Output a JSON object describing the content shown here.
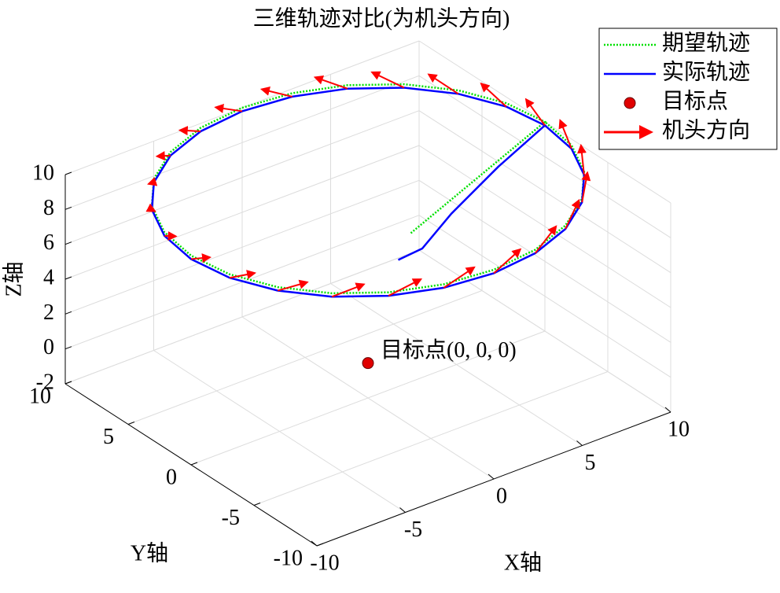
{
  "chart_data": {
    "type": "line3d",
    "title": "三维轨迹对比(为机头方向)",
    "xlabel": "X轴",
    "ylabel": "Y轴",
    "zlabel": "Z轴",
    "xlim": [
      -10,
      10
    ],
    "ylim": [
      -10,
      10
    ],
    "zlim": [
      -2,
      10
    ],
    "xticks": [
      -10,
      -5,
      0,
      5,
      10
    ],
    "yticks": [
      -10,
      -5,
      0,
      5,
      10
    ],
    "zticks": [
      -2,
      0,
      2,
      4,
      6,
      8,
      10
    ],
    "grid": true,
    "legend": "upper right",
    "annotation": {
      "text": "目标点(0, 0, 0)"
    },
    "series": [
      {
        "name": "期望轨迹",
        "color": "#00e000",
        "style": "dotted",
        "x": [
          1,
          10,
          9.66,
          8.66,
          7.07,
          5,
          2.59,
          0,
          -2.59,
          -5,
          -7.07,
          -8.66,
          -9.66,
          -10,
          -9.66,
          -8.66,
          -7.07,
          -5,
          -2.59,
          0,
          2.59,
          5,
          7.07,
          8.66,
          9.66,
          10
        ],
        "y": [
          -2,
          0,
          2.59,
          5,
          7.07,
          8.66,
          9.66,
          10,
          9.66,
          8.66,
          7.07,
          5,
          2.59,
          0,
          -2.59,
          -5,
          -7.07,
          -8.66,
          -9.66,
          -10,
          -9.66,
          -8.66,
          -7.07,
          -5,
          -2.59,
          0
        ],
        "z": [
          8,
          10,
          10,
          10,
          10,
          10,
          10,
          10,
          10,
          10,
          10,
          10,
          10,
          10,
          10,
          10,
          10,
          10,
          10,
          10,
          10,
          10,
          10,
          10,
          10,
          10
        ]
      },
      {
        "name": "实际轨迹",
        "color": "#0000ff",
        "style": "solid",
        "x": [
          1,
          2,
          4,
          7,
          10,
          9.66,
          8.66,
          7.07,
          5,
          2.59,
          0,
          -2.59,
          -5,
          -7.07,
          -8.66,
          -9.66,
          -10,
          -9.66,
          -8.66,
          -7.07,
          -5,
          -2.59,
          0,
          2.59,
          5,
          7.07,
          8.66,
          9.66,
          10
        ],
        "y": [
          -1,
          -1.5,
          -1,
          -0.5,
          0,
          2.59,
          5,
          7.07,
          8.66,
          9.66,
          10,
          9.66,
          8.66,
          7.07,
          5,
          2.59,
          0,
          -2.59,
          -5,
          -7.07,
          -8.66,
          -9.66,
          -10,
          -9.66,
          -8.66,
          -7.07,
          -5,
          -2.59,
          0
        ],
        "z": [
          6,
          6.5,
          7.5,
          8.8,
          9.8,
          9.8,
          9.8,
          9.8,
          9.8,
          9.8,
          9.8,
          9.8,
          9.8,
          9.8,
          9.8,
          9.8,
          9.8,
          9.8,
          9.8,
          9.8,
          9.8,
          9.8,
          9.8,
          9.8,
          9.8,
          9.8,
          9.8,
          9.8,
          9.8
        ]
      },
      {
        "name": "目标点",
        "color": "#e00000",
        "style": "marker",
        "x": [
          0
        ],
        "y": [
          0
        ],
        "z": [
          0
        ]
      },
      {
        "name": "机头方向",
        "color": "#ff0000",
        "style": "arrow",
        "x": [
          10,
          9.66,
          8.66,
          7.07,
          5,
          2.59,
          0,
          -2.59,
          -5,
          -7.07,
          -8.66,
          -9.66,
          -10,
          -9.66,
          -8.66,
          -7.07,
          -5,
          -2.59,
          0,
          2.59,
          5,
          7.07,
          8.66,
          9.66
        ],
        "y": [
          0,
          2.59,
          5,
          7.07,
          8.66,
          9.66,
          10,
          9.66,
          8.66,
          7.07,
          5,
          2.59,
          0,
          -2.59,
          -5,
          -7.07,
          -8.66,
          -9.66,
          -10,
          -9.66,
          -8.66,
          -7.07,
          -5,
          -2.59
        ],
        "z": [
          9.8,
          9.8,
          9.8,
          9.8,
          9.8,
          9.8,
          9.8,
          9.8,
          9.8,
          9.8,
          9.8,
          9.8,
          9.8,
          9.8,
          9.8,
          9.8,
          9.8,
          9.8,
          9.8,
          9.8,
          9.8,
          9.8,
          9.8,
          9.8
        ],
        "u": [
          0,
          -0.39,
          -0.75,
          -1.06,
          -1.3,
          -1.45,
          -1.5,
          -1.45,
          -1.3,
          -1.06,
          -0.75,
          -0.39,
          0,
          0.39,
          0.75,
          1.06,
          1.3,
          1.45,
          1.5,
          1.45,
          1.3,
          1.06,
          0.75,
          0.39
        ],
        "v": [
          1.5,
          1.45,
          1.3,
          1.06,
          0.75,
          0.39,
          0,
          -0.39,
          -0.75,
          -1.06,
          -1.3,
          -1.45,
          -1.5,
          -1.45,
          -1.3,
          -1.06,
          -0.75,
          -0.39,
          0,
          0.39,
          0.75,
          1.06,
          1.3,
          1.45
        ],
        "w": [
          0.8,
          0.8,
          0.8,
          0.8,
          0.8,
          0.8,
          0.8,
          0.8,
          0.8,
          0.8,
          0.8,
          0.8,
          0.8,
          0.8,
          0.8,
          0.8,
          0.8,
          0.8,
          0.8,
          0.8,
          0.8,
          0.8,
          0.8,
          0.8
        ]
      }
    ]
  }
}
